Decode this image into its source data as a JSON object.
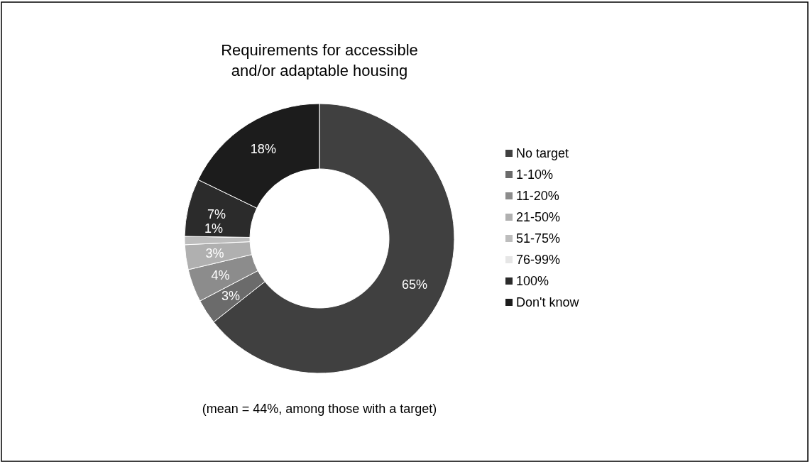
{
  "chart_data": {
    "type": "donut",
    "title": "Requirements for accessible\nand/or adaptable housing",
    "categories": [
      "No target",
      "1-10%",
      "11-20%",
      "21-50%",
      "51-75%",
      "76-99%",
      "100%",
      "Don't know"
    ],
    "values": [
      65,
      3,
      4,
      3,
      1,
      0,
      7,
      18
    ],
    "colors": [
      "#404040",
      "#6b6b6b",
      "#8c8c8c",
      "#b0b0b0",
      "#bdbdbd",
      "#e6e6e6",
      "#2b2b2b",
      "#1c1c1c"
    ],
    "value_labels": [
      "65%",
      "3%",
      "4%",
      "3%",
      "1%",
      null,
      "7%",
      "18%"
    ],
    "legend": "right",
    "annotations": [
      "(mean = 44%, among those with a target)"
    ]
  }
}
